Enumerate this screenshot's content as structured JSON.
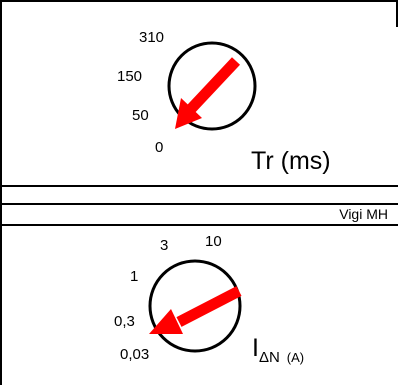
{
  "top_dial": {
    "scale": [
      "310",
      "150",
      "50",
      "0"
    ],
    "label": "Tr (ms)"
  },
  "brand": "Vigi MH",
  "bottom_dial": {
    "scale": [
      "3",
      "10",
      "1",
      "0,3",
      "0,03"
    ],
    "symbol": "I",
    "subscript": "ΔN",
    "unit": "(A)"
  },
  "colors": {
    "pointer": "#ff0000",
    "line": "#000000"
  }
}
